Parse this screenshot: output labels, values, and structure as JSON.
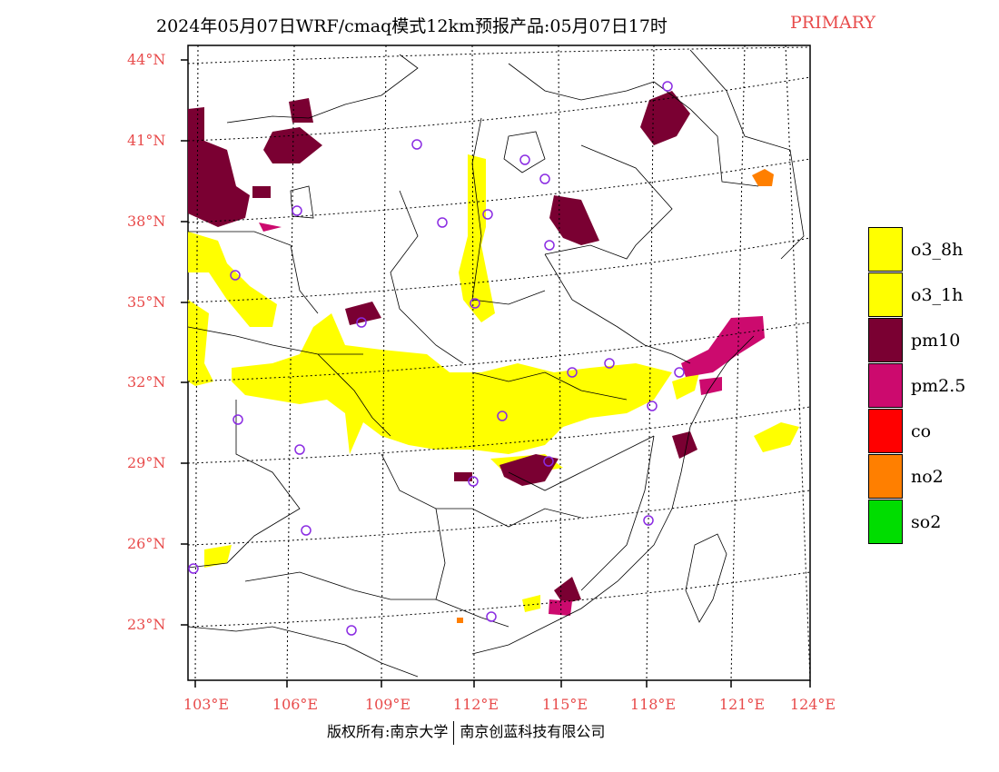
{
  "title": {
    "main": "2024年05月07日WRF/cmaq模式12km预报产品:05月07日17时",
    "tag": "PRIMARY"
  },
  "map": {
    "lat_labels": [
      "44°N",
      "41°N",
      "38°N",
      "35°N",
      "32°N",
      "29°N",
      "26°N",
      "23°N"
    ],
    "lon_labels": [
      "103°E",
      "106°E",
      "109°E",
      "112°E",
      "115°E",
      "118°E",
      "121°E",
      "124°E"
    ]
  },
  "legend": {
    "items": [
      {
        "label": "o3_8h",
        "color": "#ffff00"
      },
      {
        "label": "o3_1h",
        "color": "#ffff00"
      },
      {
        "label": "pm10",
        "color": "#7a0032"
      },
      {
        "label": "pm2.5",
        "color": "#cc0a6e"
      },
      {
        "label": "co",
        "color": "#ff0000"
      },
      {
        "label": "no2",
        "color": "#ff7f00"
      },
      {
        "label": "so2",
        "color": "#00dd00"
      }
    ]
  },
  "footer": {
    "left": "版权所有:南京大学",
    "right": "南京创蓝科技有限公司"
  }
}
